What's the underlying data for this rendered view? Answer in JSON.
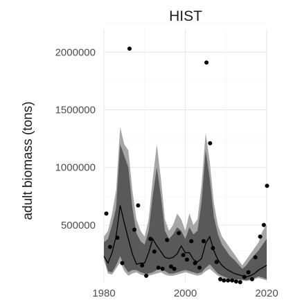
{
  "chart_data": {
    "type": "area",
    "title": "HIST",
    "xlabel": "",
    "ylabel": "adult biomass (tons)",
    "xlim": [
      1980,
      2020
    ],
    "ylim": [
      0,
      2200000
    ],
    "x_ticks": [
      1980,
      2000,
      2020
    ],
    "x_tick_labels": [
      "1980",
      "2000",
      "2020"
    ],
    "y_ticks": [
      500000,
      1000000,
      1500000,
      2000000
    ],
    "y_tick_labels": [
      "500000",
      "1000000",
      "1500000",
      "2000000"
    ],
    "grid": true,
    "colors": {
      "outer_band": "#a6a6a6",
      "inner_band": "#595959",
      "median_line": "#000000",
      "points": "#000000"
    },
    "years": [
      1980,
      1981,
      1982,
      1983,
      1984,
      1985,
      1986,
      1987,
      1988,
      1989,
      1990,
      1991,
      1992,
      1993,
      1994,
      1995,
      1996,
      1997,
      1998,
      1999,
      2000,
      2001,
      2002,
      2003,
      2004,
      2005,
      2006,
      2007,
      2008,
      2009,
      2010,
      2011,
      2012,
      2013,
      2014,
      2015,
      2016,
      2017,
      2018,
      2019,
      2020
    ],
    "outer_band": {
      "lower": [
        200000,
        80000,
        70000,
        120000,
        180000,
        100000,
        60000,
        80000,
        90000,
        70000,
        60000,
        60000,
        70000,
        80000,
        90000,
        70000,
        60000,
        60000,
        70000,
        80000,
        90000,
        80000,
        70000,
        60000,
        70000,
        100000,
        120000,
        90000,
        60000,
        40000,
        30000,
        25000,
        20000,
        20000,
        20000,
        15000,
        20000,
        30000,
        40000,
        30000,
        20000
      ],
      "upper": [
        400000,
        450000,
        600000,
        800000,
        1350000,
        1200000,
        1150000,
        800000,
        550000,
        450000,
        400000,
        550000,
        900000,
        1200000,
        900000,
        550000,
        450000,
        500000,
        600000,
        550000,
        450000,
        600000,
        500000,
        550000,
        850000,
        1300000,
        1050000,
        700000,
        500000,
        400000,
        350000,
        300000,
        250000,
        200000,
        150000,
        200000,
        250000,
        300000,
        350000,
        450000,
        500000
      ]
    },
    "inner_band": {
      "lower": [
        230000,
        100000,
        90000,
        150000,
        230000,
        140000,
        90000,
        110000,
        110000,
        90000,
        80000,
        80000,
        90000,
        110000,
        120000,
        100000,
        80000,
        80000,
        90000,
        100000,
        110000,
        100000,
        90000,
        80000,
        90000,
        130000,
        160000,
        120000,
        80000,
        60000,
        45000,
        35000,
        30000,
        28000,
        25000,
        20000,
        30000,
        40000,
        55000,
        45000,
        30000
      ],
      "upper": [
        350000,
        380000,
        500000,
        650000,
        1200000,
        1100000,
        1000000,
        650000,
        430000,
        360000,
        330000,
        450000,
        750000,
        1000000,
        750000,
        450000,
        380000,
        420000,
        480000,
        450000,
        380000,
        480000,
        420000,
        450000,
        700000,
        1150000,
        900000,
        580000,
        420000,
        330000,
        280000,
        230000,
        200000,
        160000,
        120000,
        150000,
        200000,
        240000,
        280000,
        330000,
        380000
      ]
    },
    "median": [
      230000,
      170000,
      260000,
      400000,
      670000,
      520000,
      380000,
      250000,
      160000,
      170000,
      170000,
      260000,
      380000,
      320000,
      270000,
      220000,
      210000,
      220000,
      250000,
      320000,
      260000,
      260000,
      200000,
      180000,
      210000,
      340000,
      400000,
      280000,
      200000,
      150000,
      120000,
      100000,
      80000,
      70000,
      60000,
      50000,
      60000,
      80000,
      110000,
      130000,
      150000
    ],
    "observations": {
      "x": [
        1980.6,
        1981.5,
        1983.3,
        1984.5,
        1986.3,
        1987.5,
        1988.4,
        1989.4,
        1990.4,
        1991.4,
        1992.4,
        1993.4,
        1994.4,
        1995.5,
        1996.5,
        1997.3,
        1998.4,
        1999.5,
        2000.4,
        2001.5,
        2002.4,
        2003.5,
        2004.5,
        2005.2,
        2006.1,
        2006.8,
        2007.7,
        2008.6,
        2009.5,
        2010.5,
        2011.5,
        2012.5,
        2013.5,
        2014.5,
        2015.5,
        2016.4,
        2017.2,
        2018.4,
        2019.3,
        2020.2
      ],
      "y": [
        600000,
        310000,
        390000,
        170000,
        2030000,
        460000,
        670000,
        150000,
        60000,
        380000,
        270000,
        130000,
        120000,
        370000,
        140000,
        120000,
        430000,
        240000,
        200000,
        360000,
        170000,
        130000,
        360000,
        1910000,
        1210000,
        300000,
        180000,
        30000,
        20000,
        20000,
        20000,
        10000,
        5000,
        50000,
        90000,
        30000,
        220000,
        400000,
        500000,
        840000
      ]
    }
  }
}
